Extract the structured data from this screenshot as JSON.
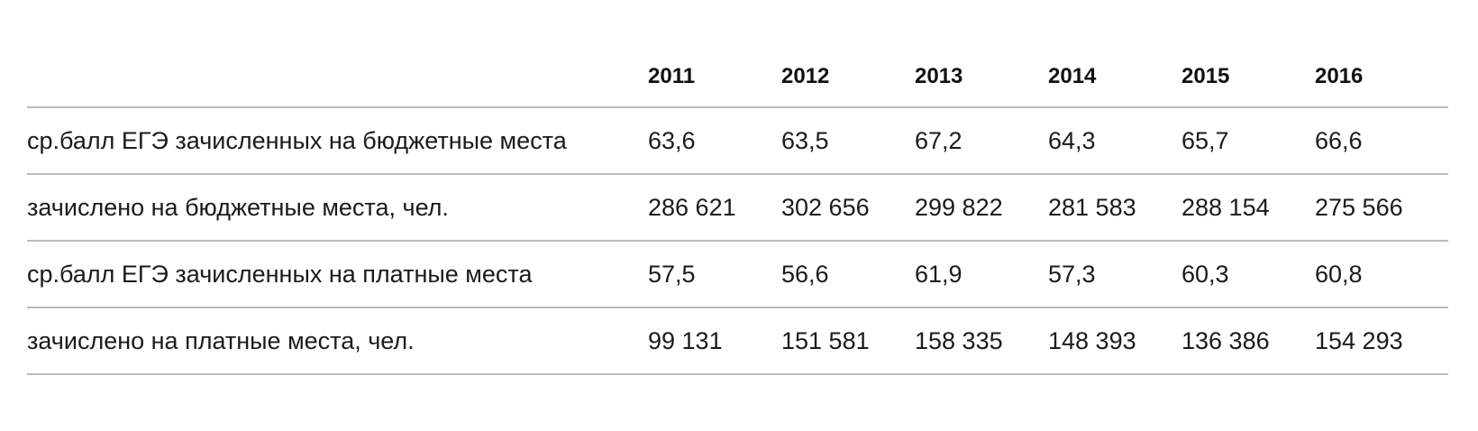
{
  "chart_data": {
    "type": "table",
    "columns": [
      "",
      "2011",
      "2012",
      "2013",
      "2014",
      "2015",
      "2016"
    ],
    "rows": [
      {
        "label": "ср.балл ЕГЭ зачисленных на бюджетные места",
        "values": [
          "63,6",
          "63,5",
          "67,2",
          "64,3",
          "65,7",
          "66,6"
        ]
      },
      {
        "label": "зачислено на бюджетные места, чел.",
        "values": [
          "286 621",
          "302 656",
          "299 822",
          "281 583",
          "288 154",
          "275 566"
        ]
      },
      {
        "label": "ср.балл ЕГЭ зачисленных на платные места",
        "values": [
          "57,5",
          "56,6",
          "61,9",
          "57,3",
          "60,3",
          "60,8"
        ]
      },
      {
        "label": "зачислено на платные места, чел.",
        "values": [
          "99 131",
          "151 581",
          "158 335",
          "148 393",
          "136 386",
          "154 293"
        ]
      }
    ]
  },
  "colors": {
    "text": "#1b1b1b",
    "rule": "#b7bcc3",
    "background": "#ffffff"
  }
}
